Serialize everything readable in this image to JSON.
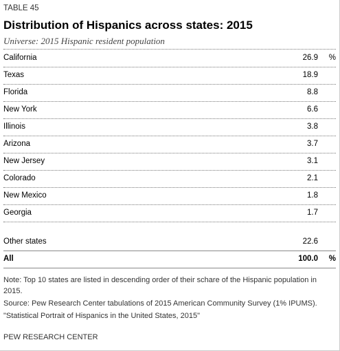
{
  "header": {
    "label": "TABLE 45",
    "title": "Distribution of Hispanics across states: 2015",
    "subtitle": "Universe: 2015 Hispanic resident population"
  },
  "table": {
    "unit": "%",
    "rows": [
      [
        "California",
        "26.9"
      ],
      [
        "Texas",
        "18.9"
      ],
      [
        "Florida",
        "8.8"
      ],
      [
        "New York",
        "6.6"
      ],
      [
        "Illinois",
        "3.8"
      ],
      [
        "Arizona",
        "3.7"
      ],
      [
        "New Jersey",
        "3.1"
      ],
      [
        "Colorado",
        "2.1"
      ],
      [
        "New Mexico",
        "1.8"
      ],
      [
        "Georgia",
        "1.7"
      ]
    ],
    "other": [
      "Other states",
      "22.6"
    ],
    "total": [
      "All",
      "100.0"
    ]
  },
  "footer": {
    "note": "Note: Top 10 states are listed in descending order of their schare of the Hispanic population in 2015.",
    "source": "Source: Pew Research Center tabulations of 2015 American Community Survey (1% IPUMS).",
    "source_title": "\"Statistical Portrait of Hispanics in the United States, 2015\"",
    "credit": "PEW RESEARCH CENTER"
  }
}
